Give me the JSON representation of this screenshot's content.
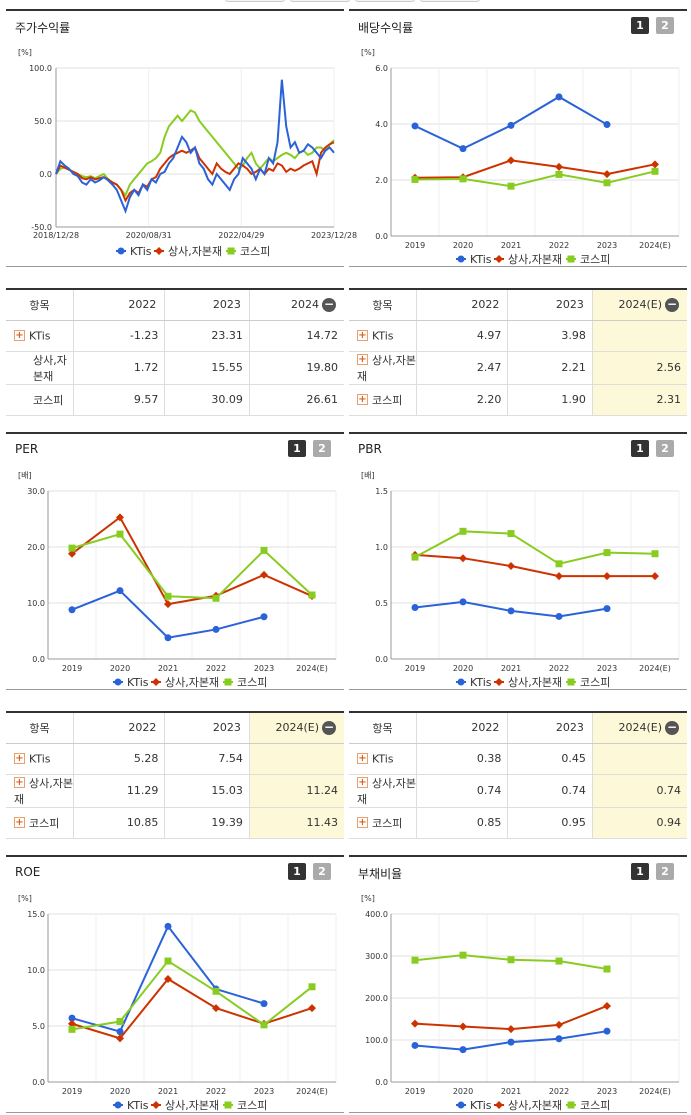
{
  "colors": {
    "ktis": "#2a62d8",
    "sector": "#cc3300",
    "kospi": "#88cc22"
  },
  "legend": [
    "KTis",
    "상사,자본재",
    "코스피"
  ],
  "panels": {
    "stock": {
      "title": "주가수익률",
      "unit": "[%]",
      "yticks": [
        "100.0",
        "50.0",
        "0.0",
        "-50.0"
      ],
      "xticks": [
        "2018/12/28",
        "2020/08/31",
        "2022/04/29",
        "2023/12/28"
      ]
    },
    "dividend": {
      "title": "배당수익률",
      "unit": "[%]",
      "yticks": [
        "6.0",
        "4.0",
        "2.0",
        "0.0"
      ],
      "btn1": "1",
      "btn2": "2"
    },
    "per": {
      "title": "PER",
      "unit": "[배]",
      "yticks": [
        "30.0",
        "20.0",
        "10.0",
        "0.0"
      ],
      "btn1": "1",
      "btn2": "2"
    },
    "pbr": {
      "title": "PBR",
      "unit": "[배]",
      "yticks": [
        "1.5",
        "1.0",
        "0.5",
        "0.0"
      ],
      "btn1": "1",
      "btn2": "2"
    },
    "roe": {
      "title": "ROE",
      "unit": "[%]",
      "yticks": [
        "15.0",
        "10.0",
        "5.0",
        "0.0"
      ],
      "btn1": "1",
      "btn2": "2"
    },
    "debt": {
      "title": "부채비율",
      "unit": "[%]",
      "yticks": [
        "400.0",
        "300.0",
        "200.0",
        "100.0",
        "0.0"
      ],
      "btn1": "1",
      "btn2": "2"
    }
  },
  "tables": {
    "stock": {
      "headers": [
        "항목",
        "2022",
        "2023",
        "2024"
      ],
      "rows": [
        {
          "name": "KTis",
          "plus": true,
          "values": [
            "-1.23",
            "23.31",
            "14.72"
          ]
        },
        {
          "name": "상사,자본재",
          "plus": false,
          "values": [
            "1.72",
            "15.55",
            "19.80"
          ]
        },
        {
          "name": "코스피",
          "plus": false,
          "values": [
            "9.57",
            "30.09",
            "26.61"
          ]
        }
      ]
    },
    "dividend": {
      "headers": [
        "항목",
        "2022",
        "2023",
        "2024(E)"
      ],
      "rows": [
        {
          "name": "KTis",
          "plus": true,
          "values": [
            "4.97",
            "3.98",
            ""
          ]
        },
        {
          "name": "상사,자본재",
          "plus": true,
          "values": [
            "2.47",
            "2.21",
            "2.56"
          ]
        },
        {
          "name": "코스피",
          "plus": true,
          "values": [
            "2.20",
            "1.90",
            "2.31"
          ]
        }
      ]
    },
    "per": {
      "headers": [
        "항목",
        "2022",
        "2023",
        "2024(E)"
      ],
      "rows": [
        {
          "name": "KTis",
          "plus": true,
          "values": [
            "5.28",
            "7.54",
            ""
          ]
        },
        {
          "name": "상사,자본재",
          "plus": true,
          "values": [
            "11.29",
            "15.03",
            "11.24"
          ]
        },
        {
          "name": "코스피",
          "plus": true,
          "values": [
            "10.85",
            "19.39",
            "11.43"
          ]
        }
      ]
    },
    "pbr": {
      "headers": [
        "항목",
        "2022",
        "2023",
        "2024(E)"
      ],
      "rows": [
        {
          "name": "KTis",
          "plus": true,
          "values": [
            "0.38",
            "0.45",
            ""
          ]
        },
        {
          "name": "상사,자본재",
          "plus": true,
          "values": [
            "0.74",
            "0.74",
            "0.74"
          ]
        },
        {
          "name": "코스피",
          "plus": true,
          "values": [
            "0.85",
            "0.95",
            "0.94"
          ]
        }
      ]
    }
  },
  "chart_data": [
    {
      "id": "stock",
      "type": "line",
      "title": "주가수익률",
      "ylabel": "[%]",
      "ylim": [
        -50,
        100
      ],
      "x_labels": [
        "2018/12/28",
        "2020/08/31",
        "2022/04/29",
        "2023/12/28"
      ],
      "series": [
        {
          "name": "KTis",
          "values": [
            0,
            12,
            8,
            5,
            0,
            -2,
            -8,
            -10,
            -5,
            -8,
            -6,
            -3,
            -6,
            -10,
            -15,
            -25,
            -35,
            -22,
            -15,
            -20,
            -10,
            -15,
            -5,
            -8,
            0,
            2,
            10,
            15,
            25,
            35,
            30,
            20,
            25,
            10,
            5,
            -5,
            -10,
            0,
            -5,
            -10,
            -15,
            -5,
            0,
            15,
            10,
            5,
            -5,
            5,
            0,
            15,
            10,
            30,
            89,
            45,
            25,
            30,
            20,
            22,
            28,
            25,
            20,
            15,
            22,
            25,
            20
          ]
        },
        {
          "name": "상사,자본재",
          "values": [
            0,
            8,
            6,
            4,
            2,
            0,
            -4,
            -5,
            -3,
            -5,
            -4,
            -3,
            -5,
            -8,
            -10,
            -15,
            -25,
            -18,
            -15,
            -18,
            -10,
            -12,
            -5,
            -3,
            5,
            10,
            15,
            18,
            20,
            22,
            20,
            22,
            25,
            15,
            10,
            5,
            0,
            10,
            5,
            2,
            0,
            5,
            10,
            8,
            5,
            0,
            2,
            5,
            0,
            5,
            3,
            10,
            8,
            2,
            5,
            3,
            5,
            8,
            10,
            12,
            0,
            20,
            25,
            28,
            30
          ]
        },
        {
          "name": "코스피",
          "values": [
            0,
            5,
            6,
            4,
            2,
            0,
            -2,
            -3,
            -2,
            -4,
            -2,
            0,
            -5,
            -8,
            -10,
            -15,
            -20,
            -10,
            -5,
            0,
            5,
            10,
            12,
            15,
            20,
            35,
            45,
            50,
            55,
            50,
            55,
            60,
            58,
            50,
            45,
            40,
            35,
            30,
            25,
            20,
            15,
            10,
            5,
            8,
            15,
            20,
            10,
            5,
            10,
            15,
            12,
            15,
            18,
            20,
            18,
            15,
            20,
            22,
            18,
            20,
            25,
            25,
            22,
            28,
            32
          ]
        }
      ]
    },
    {
      "id": "dividend",
      "type": "line",
      "title": "배당수익률",
      "ylabel": "[%]",
      "ylim": [
        0,
        6
      ],
      "categories": [
        "2019",
        "2020",
        "2021",
        "2022",
        "2023",
        "2024(E)"
      ],
      "series": [
        {
          "name": "KTis",
          "values": [
            3.93,
            3.12,
            3.95,
            4.97,
            3.98,
            null
          ]
        },
        {
          "name": "상사,자본재",
          "values": [
            2.08,
            2.1,
            2.7,
            2.47,
            2.21,
            2.56
          ]
        },
        {
          "name": "코스피",
          "values": [
            2.02,
            2.04,
            1.78,
            2.2,
            1.9,
            2.31
          ]
        }
      ]
    },
    {
      "id": "per",
      "type": "line",
      "title": "PER",
      "ylabel": "[배]",
      "ylim": [
        0,
        30
      ],
      "categories": [
        "2019",
        "2020",
        "2021",
        "2022",
        "2023",
        "2024(E)"
      ],
      "series": [
        {
          "name": "KTis",
          "values": [
            8.8,
            12.2,
            3.8,
            5.28,
            7.54,
            null
          ]
        },
        {
          "name": "상사,자본재",
          "values": [
            18.8,
            25.3,
            9.8,
            11.29,
            15.03,
            11.24
          ]
        },
        {
          "name": "코스피",
          "values": [
            19.8,
            22.3,
            11.2,
            10.85,
            19.39,
            11.43
          ]
        }
      ]
    },
    {
      "id": "pbr",
      "type": "line",
      "title": "PBR",
      "ylabel": "[배]",
      "ylim": [
        0,
        1.5
      ],
      "categories": [
        "2019",
        "2020",
        "2021",
        "2022",
        "2023",
        "2024(E)"
      ],
      "series": [
        {
          "name": "KTis",
          "values": [
            0.46,
            0.51,
            0.43,
            0.38,
            0.45,
            null
          ]
        },
        {
          "name": "상사,자본재",
          "values": [
            0.93,
            0.9,
            0.83,
            0.74,
            0.74,
            0.74
          ]
        },
        {
          "name": "코스피",
          "values": [
            0.91,
            1.14,
            1.12,
            0.85,
            0.95,
            0.94
          ]
        }
      ]
    },
    {
      "id": "roe",
      "type": "line",
      "title": "ROE",
      "ylabel": "[%]",
      "ylim": [
        0,
        15
      ],
      "categories": [
        "2019",
        "2020",
        "2021",
        "2022",
        "2023",
        "2024(E)"
      ],
      "series": [
        {
          "name": "KTis",
          "values": [
            5.7,
            4.5,
            13.9,
            8.3,
            7.0,
            null
          ]
        },
        {
          "name": "상사,자본재",
          "values": [
            5.2,
            3.9,
            9.2,
            6.6,
            5.2,
            6.6
          ]
        },
        {
          "name": "코스피",
          "values": [
            4.7,
            5.4,
            10.8,
            8.1,
            5.1,
            8.5
          ]
        }
      ]
    },
    {
      "id": "debt",
      "type": "line",
      "title": "부채비율",
      "ylabel": "[%]",
      "ylim": [
        0,
        400
      ],
      "categories": [
        "2019",
        "2020",
        "2021",
        "2022",
        "2023",
        "2024(E)"
      ],
      "series": [
        {
          "name": "KTis",
          "values": [
            87,
            77,
            95,
            103,
            121,
            null
          ]
        },
        {
          "name": "상사,자본재",
          "values": [
            139,
            132,
            126,
            136,
            181,
            null
          ]
        },
        {
          "name": "코스피",
          "values": [
            290,
            302,
            291,
            288,
            269,
            null
          ]
        }
      ]
    }
  ]
}
